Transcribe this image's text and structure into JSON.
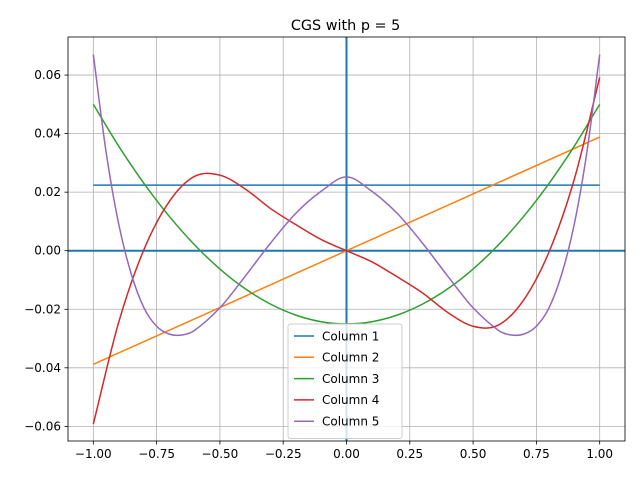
{
  "chart_data": {
    "type": "line",
    "title": "CGS with p = 5",
    "xlabel": "",
    "ylabel": "",
    "xlim": [
      -1.1,
      1.1
    ],
    "ylim": [
      -0.065,
      0.073
    ],
    "xticks": [
      -1.0,
      -0.75,
      -0.5,
      -0.25,
      0.0,
      0.25,
      0.5,
      0.75,
      1.0
    ],
    "xtick_labels": [
      "−1.00",
      "−0.75",
      "−0.50",
      "−0.25",
      "0.00",
      "0.25",
      "0.50",
      "0.75",
      "1.00"
    ],
    "yticks": [
      -0.06,
      -0.04,
      -0.02,
      0.0,
      0.02,
      0.04,
      0.06
    ],
    "ytick_labels": [
      "−0.06",
      "−0.04",
      "−0.02",
      "0.00",
      "0.02",
      "0.04",
      "0.06"
    ],
    "grid": true,
    "legend_position": "bottom-center",
    "reference_lines": [
      {
        "orientation": "horizontal",
        "value": 0.0,
        "color": "#1f77b4"
      },
      {
        "orientation": "vertical",
        "value": 0.0,
        "color": "#1f77b4"
      }
    ],
    "series": [
      {
        "name": "Column 1",
        "color": "#1f77b4",
        "x": [
          -1.0,
          1.0
        ],
        "y": [
          0.0224,
          0.0224
        ]
      },
      {
        "name": "Column 2",
        "color": "#ff7f0e",
        "x": [
          -1.0,
          1.0
        ],
        "y": [
          -0.0388,
          0.0388
        ]
      },
      {
        "name": "Column 3",
        "color": "#2ca02c",
        "x": [
          -1.0,
          -0.9,
          -0.8,
          -0.7,
          -0.6,
          -0.5,
          -0.4,
          -0.3,
          -0.2,
          -0.1,
          0.0,
          0.1,
          0.2,
          0.3,
          0.4,
          0.5,
          0.6,
          0.7,
          0.8,
          0.9,
          1.0
        ],
        "y": [
          0.05,
          0.03575,
          0.023,
          0.01175,
          0.002,
          -0.00625,
          -0.013,
          -0.01825,
          -0.022,
          -0.02425,
          -0.025,
          -0.02425,
          -0.022,
          -0.01825,
          -0.013,
          -0.00625,
          0.002,
          0.01175,
          0.023,
          0.03575,
          0.05
        ]
      },
      {
        "name": "Column 4",
        "color": "#d62728",
        "x": [
          -1.0,
          -0.9,
          -0.8,
          -0.7,
          -0.6,
          -0.5,
          -0.4,
          -0.3,
          -0.2,
          -0.1,
          0.0,
          0.1,
          0.2,
          0.3,
          0.4,
          0.5,
          0.6,
          0.7,
          0.8,
          0.9,
          1.0
        ],
        "y": [
          -0.0592,
          -0.0245,
          0.0004,
          0.0168,
          0.0254,
          0.0258,
          0.0211,
          0.0144,
          0.0089,
          0.0038,
          0.0,
          -0.0038,
          -0.0089,
          -0.0144,
          -0.0211,
          -0.0258,
          -0.0254,
          -0.0168,
          -0.0004,
          0.0245,
          0.0592
        ]
      },
      {
        "name": "Column 5",
        "color": "#9467bd",
        "x": [
          -1.0,
          -0.95,
          -0.9,
          -0.85,
          -0.8,
          -0.75,
          -0.7,
          -0.65,
          -0.6,
          -0.5,
          -0.4,
          -0.3,
          -0.2,
          -0.1,
          0.0,
          0.1,
          0.2,
          0.3,
          0.4,
          0.5,
          0.6,
          0.65,
          0.7,
          0.75,
          0.8,
          0.85,
          0.9,
          0.95,
          1.0
        ],
        "y": [
          0.067,
          0.034,
          0.0092,
          -0.008,
          -0.0195,
          -0.0258,
          -0.0285,
          -0.0288,
          -0.0272,
          -0.0195,
          -0.0087,
          0.0026,
          0.0128,
          0.0203,
          0.0252,
          0.0203,
          0.0128,
          0.0026,
          -0.0087,
          -0.0195,
          -0.0272,
          -0.0288,
          -0.0285,
          -0.0258,
          -0.0195,
          -0.008,
          0.0092,
          0.034,
          0.067
        ]
      }
    ]
  }
}
